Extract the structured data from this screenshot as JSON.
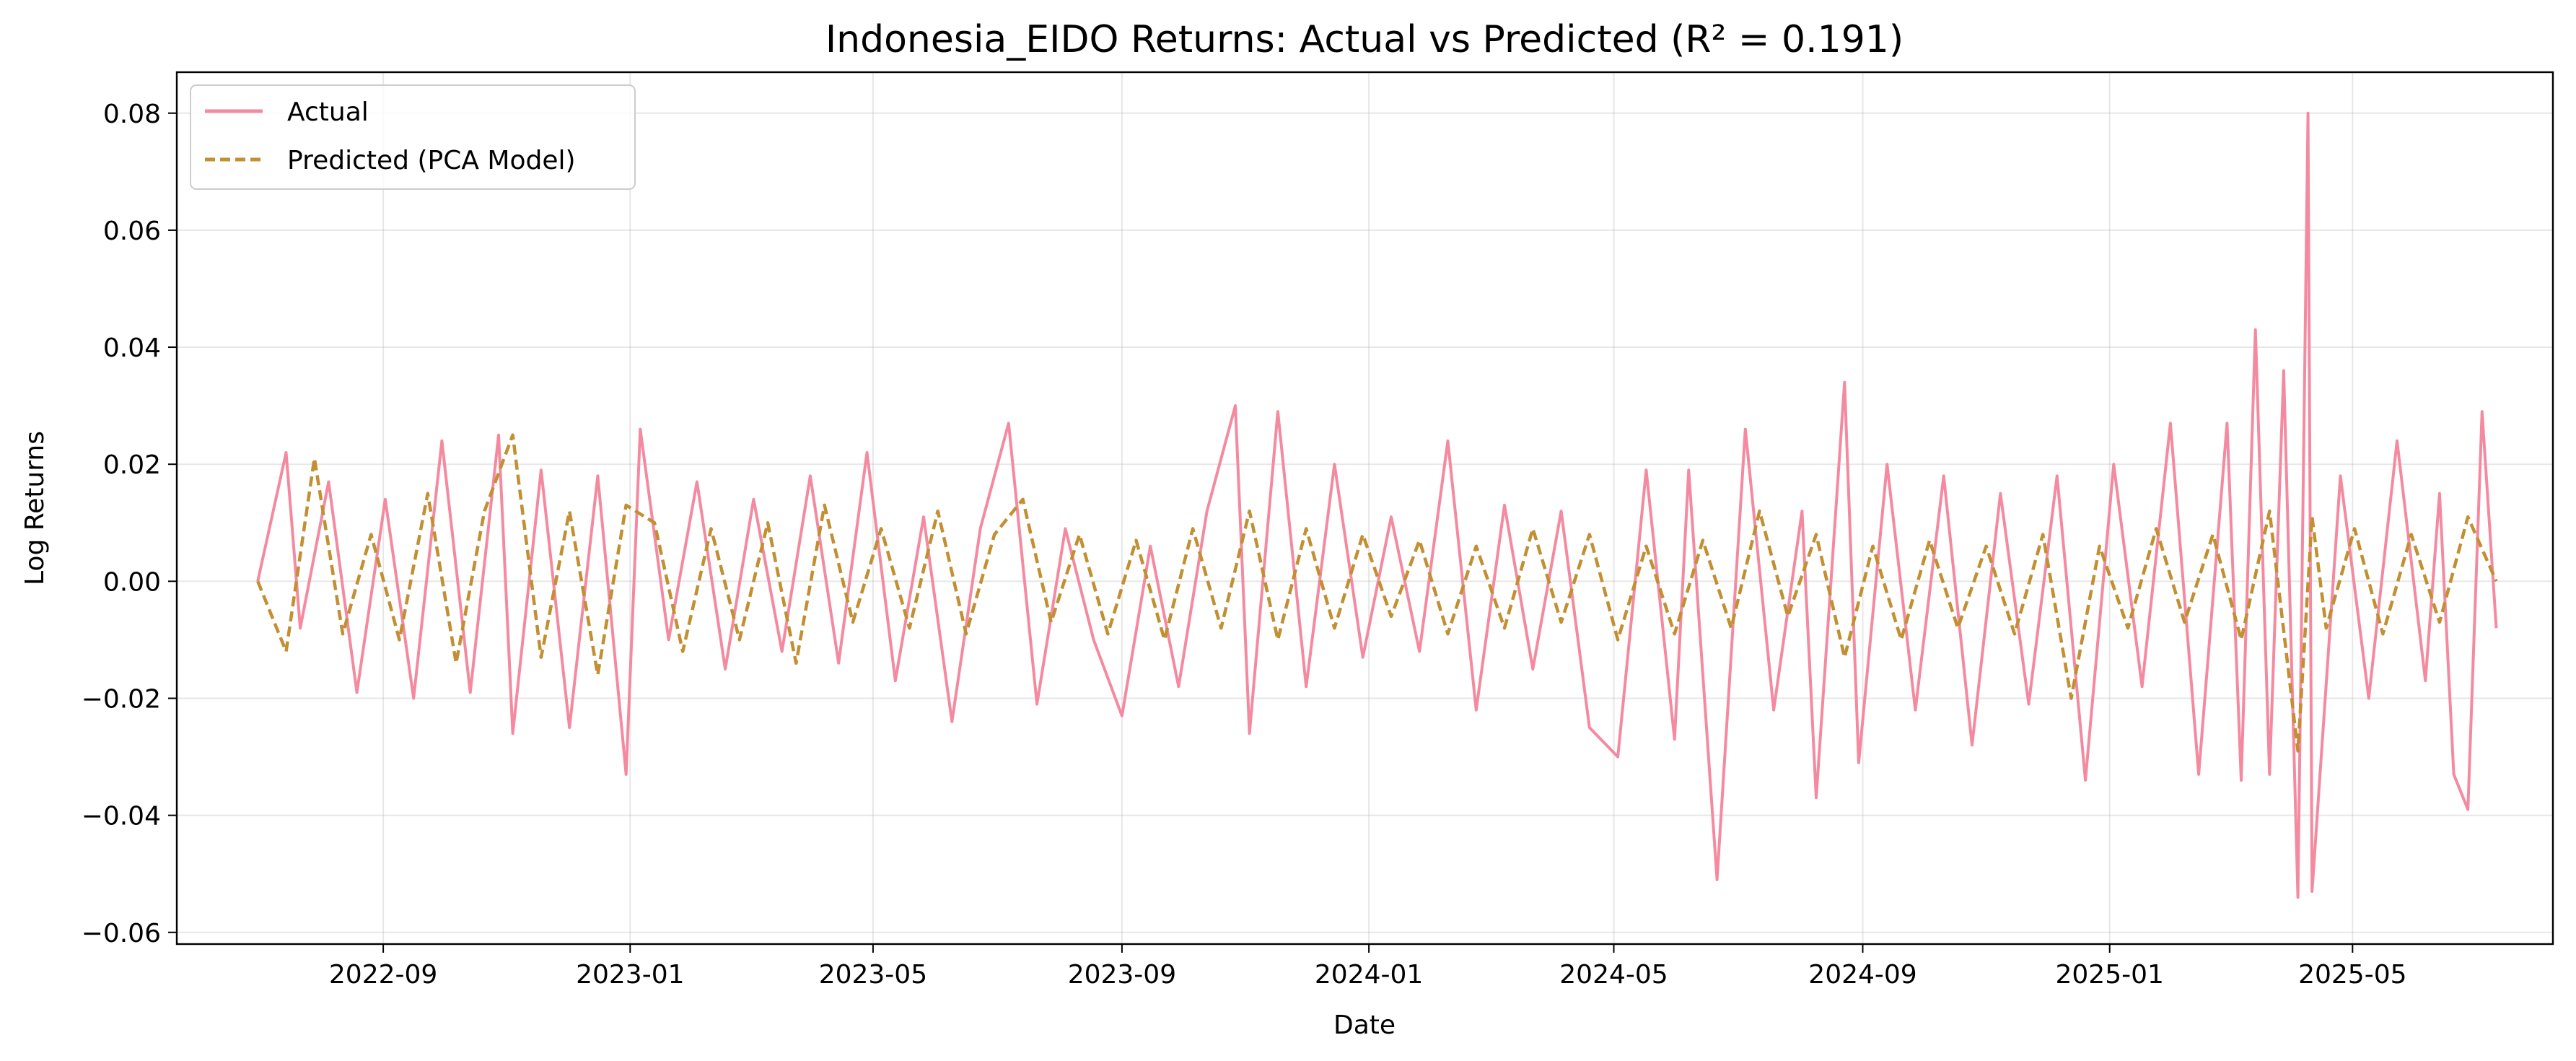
{
  "chart_data": {
    "type": "line",
    "title": "Indonesia_EIDO Returns: Actual vs Predicted (R² = 0.191)",
    "xlabel": "Date",
    "ylabel": "Log Returns",
    "xlim": [
      "2022-05-22",
      "2025-08-08"
    ],
    "ylim": [
      -0.062,
      0.087
    ],
    "x_ticks": [
      "2022-09",
      "2023-01",
      "2023-05",
      "2023-09",
      "2024-01",
      "2024-05",
      "2024-09",
      "2025-01",
      "2025-05"
    ],
    "x_tick_dates": [
      "2022-09-01",
      "2023-01-01",
      "2023-05-01",
      "2023-09-01",
      "2024-01-01",
      "2024-05-01",
      "2024-09-01",
      "2025-01-01",
      "2025-05-01"
    ],
    "y_ticks": [
      -0.06,
      -0.04,
      -0.02,
      0.0,
      0.02,
      0.04,
      0.06,
      0.08
    ],
    "y_tick_labels": [
      "−0.06",
      "−0.04",
      "−0.02",
      "0.00",
      "0.02",
      "0.04",
      "0.06",
      "0.08"
    ],
    "grid": true,
    "legend_position": "top-left",
    "series": [
      {
        "name": "Actual",
        "color": "#f48aa0",
        "style": "solid",
        "x": [
          "2022-07-01",
          "2022-07-15",
          "2022-07-22",
          "2022-08-05",
          "2022-08-19",
          "2022-09-02",
          "2022-09-16",
          "2022-09-30",
          "2022-10-14",
          "2022-10-28",
          "2022-11-04",
          "2022-11-18",
          "2022-12-02",
          "2022-12-16",
          "2022-12-30",
          "2023-01-06",
          "2023-01-20",
          "2023-02-03",
          "2023-02-17",
          "2023-03-03",
          "2023-03-17",
          "2023-03-31",
          "2023-04-14",
          "2023-04-28",
          "2023-05-12",
          "2023-05-26",
          "2023-06-09",
          "2023-06-23",
          "2023-07-07",
          "2023-07-21",
          "2023-08-04",
          "2023-08-18",
          "2023-09-01",
          "2023-09-15",
          "2023-09-29",
          "2023-10-13",
          "2023-10-27",
          "2023-11-03",
          "2023-11-17",
          "2023-12-01",
          "2023-12-15",
          "2023-12-29",
          "2024-01-12",
          "2024-01-26",
          "2024-02-09",
          "2024-02-23",
          "2024-03-08",
          "2024-03-22",
          "2024-04-05",
          "2024-04-19",
          "2024-05-03",
          "2024-05-17",
          "2024-05-31",
          "2024-06-07",
          "2024-06-21",
          "2024-07-05",
          "2024-07-19",
          "2024-08-02",
          "2024-08-09",
          "2024-08-23",
          "2024-08-30",
          "2024-09-13",
          "2024-09-27",
          "2024-10-11",
          "2024-10-25",
          "2024-11-08",
          "2024-11-22",
          "2024-12-06",
          "2024-12-20",
          "2025-01-03",
          "2025-01-17",
          "2025-01-31",
          "2025-02-14",
          "2025-02-28",
          "2025-03-07",
          "2025-03-14",
          "2025-03-21",
          "2025-03-28",
          "2025-04-04",
          "2025-04-09",
          "2025-04-11",
          "2025-04-25",
          "2025-05-09",
          "2025-05-23",
          "2025-06-06",
          "2025-06-13",
          "2025-06-20",
          "2025-06-27",
          "2025-07-04",
          "2025-07-11"
        ],
        "values": [
          0.0,
          0.022,
          -0.008,
          0.017,
          -0.019,
          0.014,
          -0.02,
          0.024,
          -0.019,
          0.025,
          -0.026,
          0.019,
          -0.025,
          0.018,
          -0.033,
          0.026,
          -0.01,
          0.017,
          -0.015,
          0.014,
          -0.012,
          0.018,
          -0.014,
          0.022,
          -0.017,
          0.011,
          -0.024,
          0.009,
          0.027,
          -0.021,
          0.009,
          -0.01,
          -0.023,
          0.006,
          -0.018,
          0.012,
          0.03,
          -0.026,
          0.029,
          -0.018,
          0.02,
          -0.013,
          0.011,
          -0.012,
          0.024,
          -0.022,
          0.013,
          -0.015,
          0.012,
          -0.025,
          -0.03,
          0.019,
          -0.027,
          0.019,
          -0.051,
          0.026,
          -0.022,
          0.012,
          -0.037,
          0.034,
          -0.031,
          0.02,
          -0.022,
          0.018,
          -0.028,
          0.015,
          -0.021,
          0.018,
          -0.034,
          0.02,
          -0.018,
          0.027,
          -0.033,
          0.027,
          -0.034,
          0.043,
          -0.033,
          0.036,
          -0.054,
          0.08,
          -0.053,
          0.018,
          -0.02,
          0.024,
          -0.017,
          0.015,
          -0.033,
          -0.039,
          0.029,
          -0.008
        ]
      },
      {
        "name": "Predicted (PCA Model)",
        "color": "#c28f32",
        "style": "dashed",
        "x": [
          "2022-07-01",
          "2022-07-15",
          "2022-07-29",
          "2022-08-12",
          "2022-08-26",
          "2022-09-09",
          "2022-09-23",
          "2022-10-07",
          "2022-10-21",
          "2022-11-04",
          "2022-11-18",
          "2022-12-02",
          "2022-12-16",
          "2022-12-30",
          "2023-01-13",
          "2023-01-27",
          "2023-02-10",
          "2023-02-24",
          "2023-03-10",
          "2023-03-24",
          "2023-04-07",
          "2023-04-21",
          "2023-05-05",
          "2023-05-19",
          "2023-06-02",
          "2023-06-16",
          "2023-06-30",
          "2023-07-14",
          "2023-07-28",
          "2023-08-11",
          "2023-08-25",
          "2023-09-08",
          "2023-09-22",
          "2023-10-06",
          "2023-10-20",
          "2023-11-03",
          "2023-11-17",
          "2023-12-01",
          "2023-12-15",
          "2023-12-29",
          "2024-01-12",
          "2024-01-26",
          "2024-02-09",
          "2024-02-23",
          "2024-03-08",
          "2024-03-22",
          "2024-04-05",
          "2024-04-19",
          "2024-05-03",
          "2024-05-17",
          "2024-05-31",
          "2024-06-14",
          "2024-06-28",
          "2024-07-12",
          "2024-07-26",
          "2024-08-09",
          "2024-08-23",
          "2024-09-06",
          "2024-09-20",
          "2024-10-04",
          "2024-10-18",
          "2024-11-01",
          "2024-11-15",
          "2024-11-29",
          "2024-12-13",
          "2024-12-27",
          "2025-01-10",
          "2025-01-24",
          "2025-02-07",
          "2025-02-21",
          "2025-03-07",
          "2025-03-21",
          "2025-04-04",
          "2025-04-11",
          "2025-04-18",
          "2025-05-02",
          "2025-05-16",
          "2025-05-30",
          "2025-06-13",
          "2025-06-27",
          "2025-07-11"
        ],
        "values": [
          0.0,
          -0.012,
          0.021,
          -0.009,
          0.008,
          -0.01,
          0.015,
          -0.014,
          0.012,
          0.025,
          -0.013,
          0.012,
          -0.016,
          0.013,
          0.01,
          -0.012,
          0.009,
          -0.01,
          0.01,
          -0.014,
          0.013,
          -0.007,
          0.009,
          -0.008,
          0.012,
          -0.009,
          0.008,
          0.014,
          -0.007,
          0.008,
          -0.009,
          0.007,
          -0.01,
          0.009,
          -0.008,
          0.012,
          -0.01,
          0.009,
          -0.008,
          0.008,
          -0.006,
          0.007,
          -0.009,
          0.006,
          -0.008,
          0.009,
          -0.007,
          0.008,
          -0.01,
          0.006,
          -0.009,
          0.007,
          -0.008,
          0.012,
          -0.006,
          0.008,
          -0.013,
          0.006,
          -0.01,
          0.007,
          -0.008,
          0.006,
          -0.009,
          0.008,
          -0.02,
          0.006,
          -0.008,
          0.009,
          -0.007,
          0.008,
          -0.01,
          0.012,
          -0.029,
          0.011,
          -0.008,
          0.009,
          -0.009,
          0.008,
          -0.007,
          0.011,
          0.0
        ]
      }
    ]
  }
}
